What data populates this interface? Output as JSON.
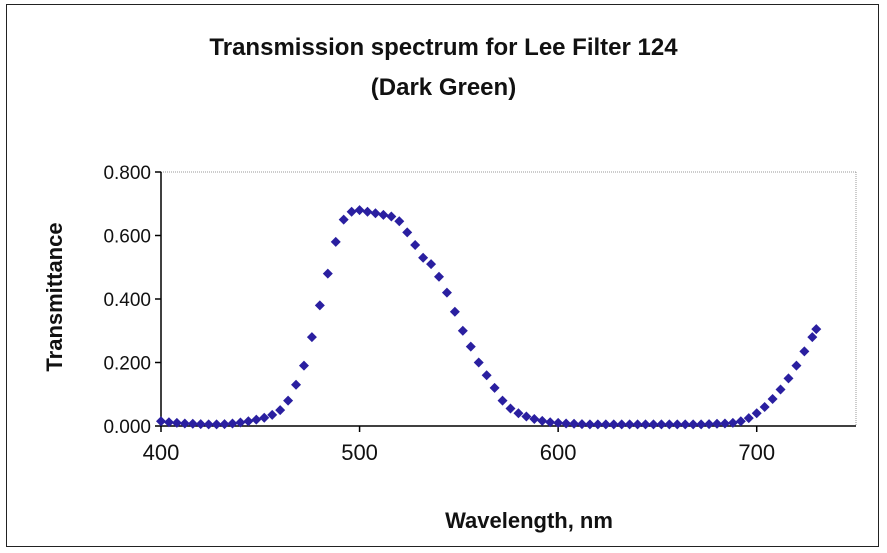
{
  "chart_data": {
    "type": "scatter",
    "title": "Transmission spectrum for Lee Filter 124",
    "subtitle": "(Dark Green)",
    "xlabel": "Wavelength, nm",
    "ylabel": "Transmittance",
    "xlim": [
      400,
      750
    ],
    "ylim": [
      0,
      0.8
    ],
    "x_ticks": [
      "400",
      "500",
      "600",
      "700"
    ],
    "x_tick_values": [
      400,
      500,
      600,
      700
    ],
    "y_ticks": [
      "0.000",
      "0.200",
      "0.400",
      "0.600",
      "0.800"
    ],
    "y_tick_values": [
      0,
      0.2,
      0.4,
      0.6,
      0.8
    ],
    "marker_color": "#2a1fa0",
    "marker": "diamond",
    "grid": false,
    "legend": "none",
    "series": [
      {
        "x": [
          400,
          404,
          408,
          412,
          416,
          420,
          424,
          428,
          432,
          436,
          440,
          444,
          448,
          452,
          456,
          460,
          464,
          468,
          472,
          476,
          480,
          484,
          488,
          492,
          496,
          500,
          504,
          508,
          512,
          516,
          520,
          524,
          528,
          532,
          536,
          540,
          544,
          548,
          552,
          556,
          560,
          564,
          568,
          572,
          576,
          580,
          584,
          588,
          592,
          596,
          600,
          604,
          608,
          612,
          616,
          620,
          624,
          628,
          632,
          636,
          640,
          644,
          648,
          652,
          656,
          660,
          664,
          668,
          672,
          676,
          680,
          684,
          688,
          692,
          696,
          700,
          704,
          708,
          712,
          716,
          720,
          724,
          728,
          730
        ],
        "y": [
          0.015,
          0.012,
          0.01,
          0.008,
          0.007,
          0.006,
          0.005,
          0.005,
          0.006,
          0.008,
          0.011,
          0.015,
          0.02,
          0.026,
          0.035,
          0.05,
          0.08,
          0.13,
          0.19,
          0.28,
          0.38,
          0.48,
          0.58,
          0.65,
          0.675,
          0.68,
          0.675,
          0.67,
          0.665,
          0.66,
          0.645,
          0.61,
          0.57,
          0.53,
          0.51,
          0.47,
          0.42,
          0.36,
          0.3,
          0.25,
          0.2,
          0.16,
          0.12,
          0.08,
          0.055,
          0.04,
          0.03,
          0.022,
          0.016,
          0.012,
          0.01,
          0.008,
          0.007,
          0.006,
          0.005,
          0.005,
          0.005,
          0.005,
          0.005,
          0.005,
          0.005,
          0.005,
          0.005,
          0.005,
          0.005,
          0.005,
          0.005,
          0.005,
          0.005,
          0.006,
          0.007,
          0.008,
          0.01,
          0.015,
          0.025,
          0.04,
          0.06,
          0.085,
          0.115,
          0.15,
          0.19,
          0.235,
          0.28,
          0.305
        ]
      }
    ]
  }
}
